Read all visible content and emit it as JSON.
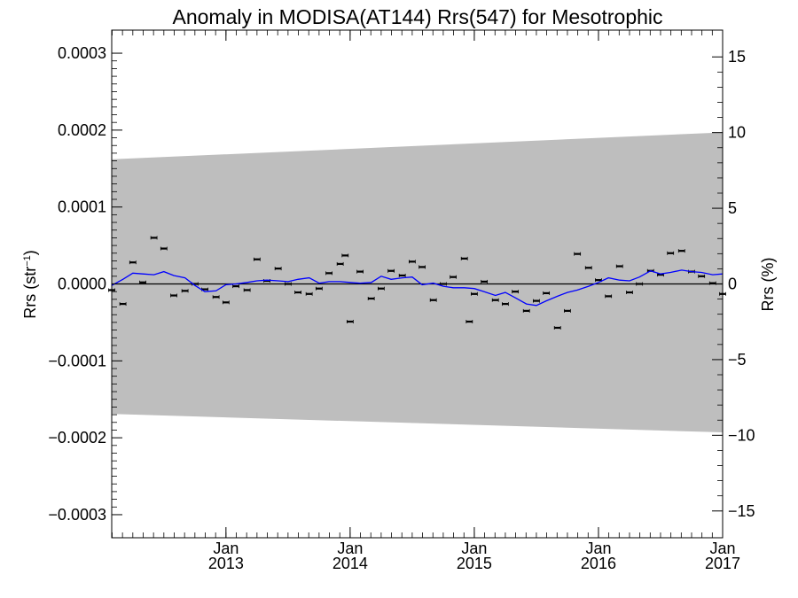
{
  "chart_data": {
    "type": "line",
    "title": "Anomaly in MODISA(AT144) Rrs(547) for Mesotrophic",
    "ylabel_left": {
      "base": "Rrs (str",
      "sup": "−1",
      "close": ")"
    },
    "ylabel_right": "Rrs (%)",
    "xlim": [
      2012.08,
      2017.0
    ],
    "ylim": [
      -0.00033,
      0.00033
    ],
    "ylim_right": [
      -16.77,
      16.77
    ],
    "x_ticks": [
      {
        "x": 2013.0,
        "line1": "Jan",
        "line2": "2013"
      },
      {
        "x": 2014.0,
        "line1": "Jan",
        "line2": "2014"
      },
      {
        "x": 2015.0,
        "line1": "Jan",
        "line2": "2015"
      },
      {
        "x": 2016.0,
        "line1": "Jan",
        "line2": "2016"
      },
      {
        "x": 2017.0,
        "line1": "Jan",
        "line2": "2017"
      }
    ],
    "y_ticks_left": [
      {
        "value": 0.0003,
        "label": "0.0003"
      },
      {
        "value": 0.0002,
        "label": "0.0002"
      },
      {
        "value": 0.0001,
        "label": "0.0001"
      },
      {
        "value": 0.0,
        "label": "0.0000"
      },
      {
        "value": -0.0001,
        "label": "−0.0001"
      },
      {
        "value": -0.0002,
        "label": "−0.0002"
      },
      {
        "value": -0.0003,
        "label": "−0.0003"
      }
    ],
    "y_ticks_right": [
      {
        "value": 15,
        "label": "15"
      },
      {
        "value": 10,
        "label": "10"
      },
      {
        "value": 5,
        "label": "5"
      },
      {
        "value": 0,
        "label": "0"
      },
      {
        "value": -5,
        "label": "−5"
      },
      {
        "value": -10,
        "label": "−10"
      },
      {
        "value": -15,
        "label": "−15"
      }
    ],
    "uncertainty_band": {
      "x": [
        2012.08,
        2017.0
      ],
      "upper": [
        0.000162,
        0.000197
      ],
      "lower": [
        -0.000169,
        -0.000193
      ],
      "color": "#bebebe"
    },
    "zero_line": true,
    "series": [
      {
        "style": "points-with-errorbars",
        "color": "#000000",
        "x": [
          2012.08,
          2012.17,
          2012.25,
          2012.33,
          2012.42,
          2012.5,
          2012.58,
          2012.67,
          2012.75,
          2012.83,
          2012.92,
          2013.0,
          2013.08,
          2013.17,
          2013.25,
          2013.33,
          2013.42,
          2013.5,
          2013.58,
          2013.67,
          2013.75,
          2013.83,
          2013.92,
          2013.96,
          2014.0,
          2014.08,
          2014.17,
          2014.25,
          2014.33,
          2014.42,
          2014.5,
          2014.58,
          2014.67,
          2014.75,
          2014.83,
          2014.92,
          2014.96,
          2015.0,
          2015.08,
          2015.17,
          2015.25,
          2015.33,
          2015.42,
          2015.5,
          2015.58,
          2015.67,
          2015.75,
          2015.83,
          2015.92,
          2016.0,
          2016.08,
          2016.17,
          2016.25,
          2016.33,
          2016.42,
          2016.5,
          2016.58,
          2016.67,
          2016.75,
          2016.83,
          2016.92,
          2017.0
        ],
        "y": [
          -8e-06,
          -2.6e-05,
          2.8e-05,
          2e-06,
          6e-05,
          4.6e-05,
          -1.5e-05,
          -9e-06,
          0.0,
          -7e-06,
          -1.7e-05,
          -2.4e-05,
          -3e-06,
          -8e-06,
          3.2e-05,
          4e-06,
          2e-05,
          0.0,
          -1.1e-05,
          -1.3e-05,
          -6e-06,
          1.4e-05,
          2.6e-05,
          3.7e-05,
          -4.9e-05,
          1.6e-05,
          -1.9e-05,
          -6e-06,
          1.7e-05,
          1.1e-05,
          2.9e-05,
          2.2e-05,
          -2.1e-05,
          0.0,
          9e-06,
          3.3e-05,
          -4.9e-05,
          -1.3e-05,
          3e-06,
          -2.1e-05,
          -2.6e-05,
          -1e-05,
          -3.5e-05,
          -2.2e-05,
          -1.2e-05,
          -5.7e-05,
          -3.5e-05,
          3.9e-05,
          2.1e-05,
          5e-06,
          -1.6e-05,
          2.3e-05,
          -1.1e-05,
          0.0,
          1.7e-05,
          1.2e-05,
          4e-05,
          4.3e-05,
          1.6e-05,
          1e-05,
          1e-06,
          -1.3e-05
        ]
      },
      {
        "style": "line",
        "color": "#0000ff",
        "x": [
          2012.08,
          2012.17,
          2012.25,
          2012.33,
          2012.42,
          2012.5,
          2012.58,
          2012.67,
          2012.75,
          2012.83,
          2012.92,
          2013.0,
          2013.08,
          2013.17,
          2013.25,
          2013.33,
          2013.42,
          2013.5,
          2013.58,
          2013.67,
          2013.75,
          2013.83,
          2013.92,
          2014.0,
          2014.08,
          2014.17,
          2014.25,
          2014.33,
          2014.42,
          2014.5,
          2014.58,
          2014.67,
          2014.75,
          2014.83,
          2014.92,
          2015.0,
          2015.08,
          2015.17,
          2015.25,
          2015.33,
          2015.42,
          2015.5,
          2015.58,
          2015.67,
          2015.75,
          2015.83,
          2015.92,
          2016.0,
          2016.08,
          2016.17,
          2016.25,
          2016.33,
          2016.42,
          2016.5,
          2016.58,
          2016.67,
          2016.75,
          2016.83,
          2016.92,
          2017.0
        ],
        "y": [
          -2e-06,
          6e-06,
          1.4e-05,
          1.3e-05,
          1.2e-05,
          1.6e-05,
          1.1e-05,
          8e-06,
          -2e-06,
          -1e-05,
          -9e-06,
          -1e-06,
          0.0,
          2e-06,
          4e-06,
          5e-06,
          4e-06,
          3e-06,
          6e-06,
          8e-06,
          1e-06,
          3e-06,
          3e-06,
          2e-06,
          1e-06,
          2e-06,
          1e-05,
          6e-06,
          8e-06,
          9e-06,
          -1e-06,
          1e-06,
          -3e-06,
          -5e-06,
          -5e-06,
          -6e-06,
          -1e-05,
          -1.5e-05,
          -1.1e-05,
          -1.8e-05,
          -2.6e-05,
          -2.8e-05,
          -2.2e-05,
          -1.6e-05,
          -1.1e-05,
          -8e-06,
          -3e-06,
          2e-06,
          8e-06,
          5e-06,
          4e-06,
          9e-06,
          1.7e-05,
          1.3e-05,
          1.5e-05,
          1.8e-05,
          1.6e-05,
          1.5e-05,
          1.2e-05,
          1.3e-05
        ]
      }
    ],
    "grid": false,
    "legend": "none"
  }
}
